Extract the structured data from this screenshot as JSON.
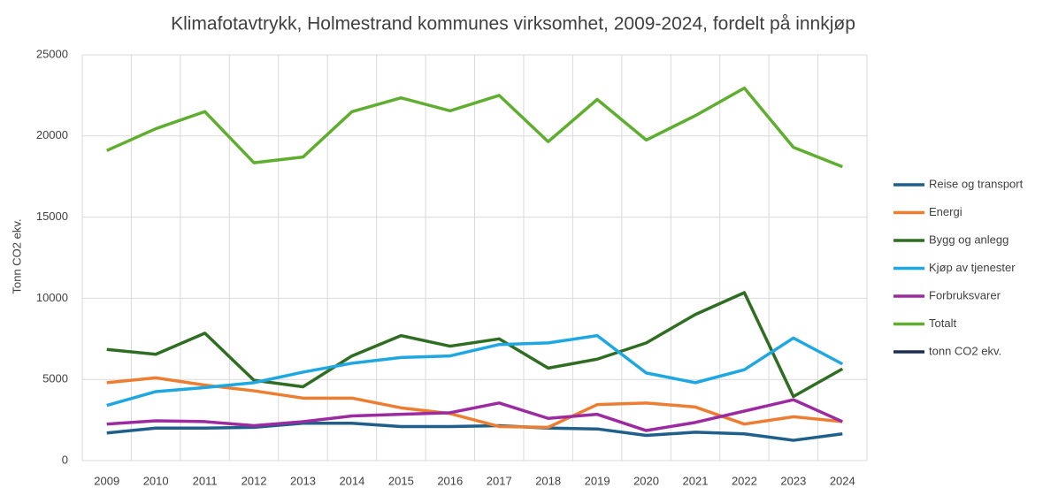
{
  "chart_data": {
    "type": "line",
    "title": "Klimafotavtrykk, Holmestrand kommunes virksomhet, 2009-2024, fordelt på innkjøp",
    "y_label": "Tonn CO2 ekv.",
    "categories": [
      "2009",
      "2010",
      "2011",
      "2012",
      "2013",
      "2014",
      "2015",
      "2016",
      "2017",
      "2018",
      "2019",
      "2020",
      "2021",
      "2022",
      "2023",
      "2024"
    ],
    "ylim": [
      0,
      25000
    ],
    "yticks": [
      0,
      5000,
      10000,
      15000,
      20000,
      25000
    ],
    "grid": true,
    "legend": "right",
    "series": [
      {
        "name": "Reise og transport",
        "color": "#1f5f8b",
        "values": [
          1700,
          2000,
          2000,
          2050,
          2300,
          2300,
          2100,
          2100,
          2150,
          2000,
          1950,
          1550,
          1750,
          1650,
          1250,
          1650
        ]
      },
      {
        "name": "Energi",
        "color": "#ed7d31",
        "values": [
          4800,
          5100,
          4650,
          4300,
          3850,
          3850,
          3250,
          2900,
          2100,
          2050,
          3450,
          3550,
          3300,
          2250,
          2700,
          2400
        ]
      },
      {
        "name": "Bygg og anlegg",
        "color": "#2f6e22",
        "values": [
          6850,
          6550,
          7850,
          4950,
          4550,
          6450,
          7700,
          7050,
          7500,
          5700,
          6250,
          7250,
          9000,
          10350,
          3950,
          5650
        ]
      },
      {
        "name": "Kjøp av tjenester",
        "color": "#1ea7e1",
        "values": [
          3400,
          4250,
          4500,
          4800,
          5450,
          6000,
          6350,
          6450,
          7150,
          7250,
          7700,
          5400,
          4800,
          5600,
          7550,
          5950
        ]
      },
      {
        "name": "Forbruksvarer",
        "color": "#9c2aa0",
        "values": [
          2250,
          2450,
          2400,
          2150,
          2400,
          2750,
          2850,
          2950,
          3550,
          2600,
          2850,
          1850,
          2350,
          3050,
          3750,
          2400
        ]
      },
      {
        "name": "Totalt",
        "color": "#5fae2f",
        "values": [
          19100,
          20450,
          21500,
          18350,
          18700,
          21500,
          22350,
          21550,
          22500,
          19650,
          22250,
          19750,
          21250,
          22950,
          19300,
          18100
        ]
      },
      {
        "name": "tonn CO2 ekv.",
        "color": "#1a2f4f",
        "values": [
          null,
          null,
          null,
          null,
          null,
          null,
          null,
          null,
          null,
          null,
          null,
          null,
          null,
          null,
          null,
          null
        ]
      }
    ]
  }
}
